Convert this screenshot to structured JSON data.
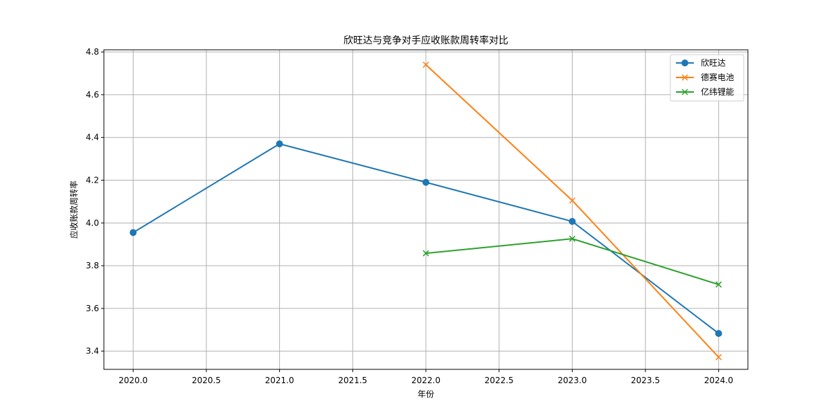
{
  "chart_data": {
    "type": "line",
    "title": "欣旺达与竞争对手应收账款周转率对比",
    "xlabel": "年份",
    "ylabel": "应收账款周转率",
    "xlim": [
      2019.8,
      2024.2
    ],
    "ylim": [
      3.315,
      4.81
    ],
    "xticks": [
      2020.0,
      2020.5,
      2021.0,
      2021.5,
      2022.0,
      2022.5,
      2023.0,
      2023.5,
      2024.0
    ],
    "xtick_labels": [
      "2020.0",
      "2020.5",
      "2021.0",
      "2021.5",
      "2022.0",
      "2022.5",
      "2023.0",
      "2023.5",
      "2024.0"
    ],
    "yticks": [
      3.4,
      3.6,
      3.8,
      4.0,
      4.2,
      4.4,
      4.6,
      4.8
    ],
    "ytick_labels": [
      "3.4",
      "3.6",
      "3.8",
      "4.0",
      "4.2",
      "4.4",
      "4.6",
      "4.8"
    ],
    "grid": true,
    "legend_position": "top-right",
    "series": [
      {
        "name": "欣旺达",
        "marker": "circle",
        "color": "#1f77b4",
        "x": [
          2020,
          2021,
          2022,
          2023,
          2024
        ],
        "values": [
          3.955,
          4.37,
          4.19,
          4.007,
          3.483
        ]
      },
      {
        "name": "德赛电池",
        "marker": "x",
        "color": "#ff7f0e",
        "x": [
          2022,
          2023,
          2024
        ],
        "values": [
          4.74,
          4.105,
          3.372
        ]
      },
      {
        "name": "亿纬锂能",
        "marker": "x",
        "color": "#2ca02c",
        "x": [
          2022,
          2023,
          2024
        ],
        "values": [
          3.858,
          3.926,
          3.712
        ]
      }
    ]
  }
}
